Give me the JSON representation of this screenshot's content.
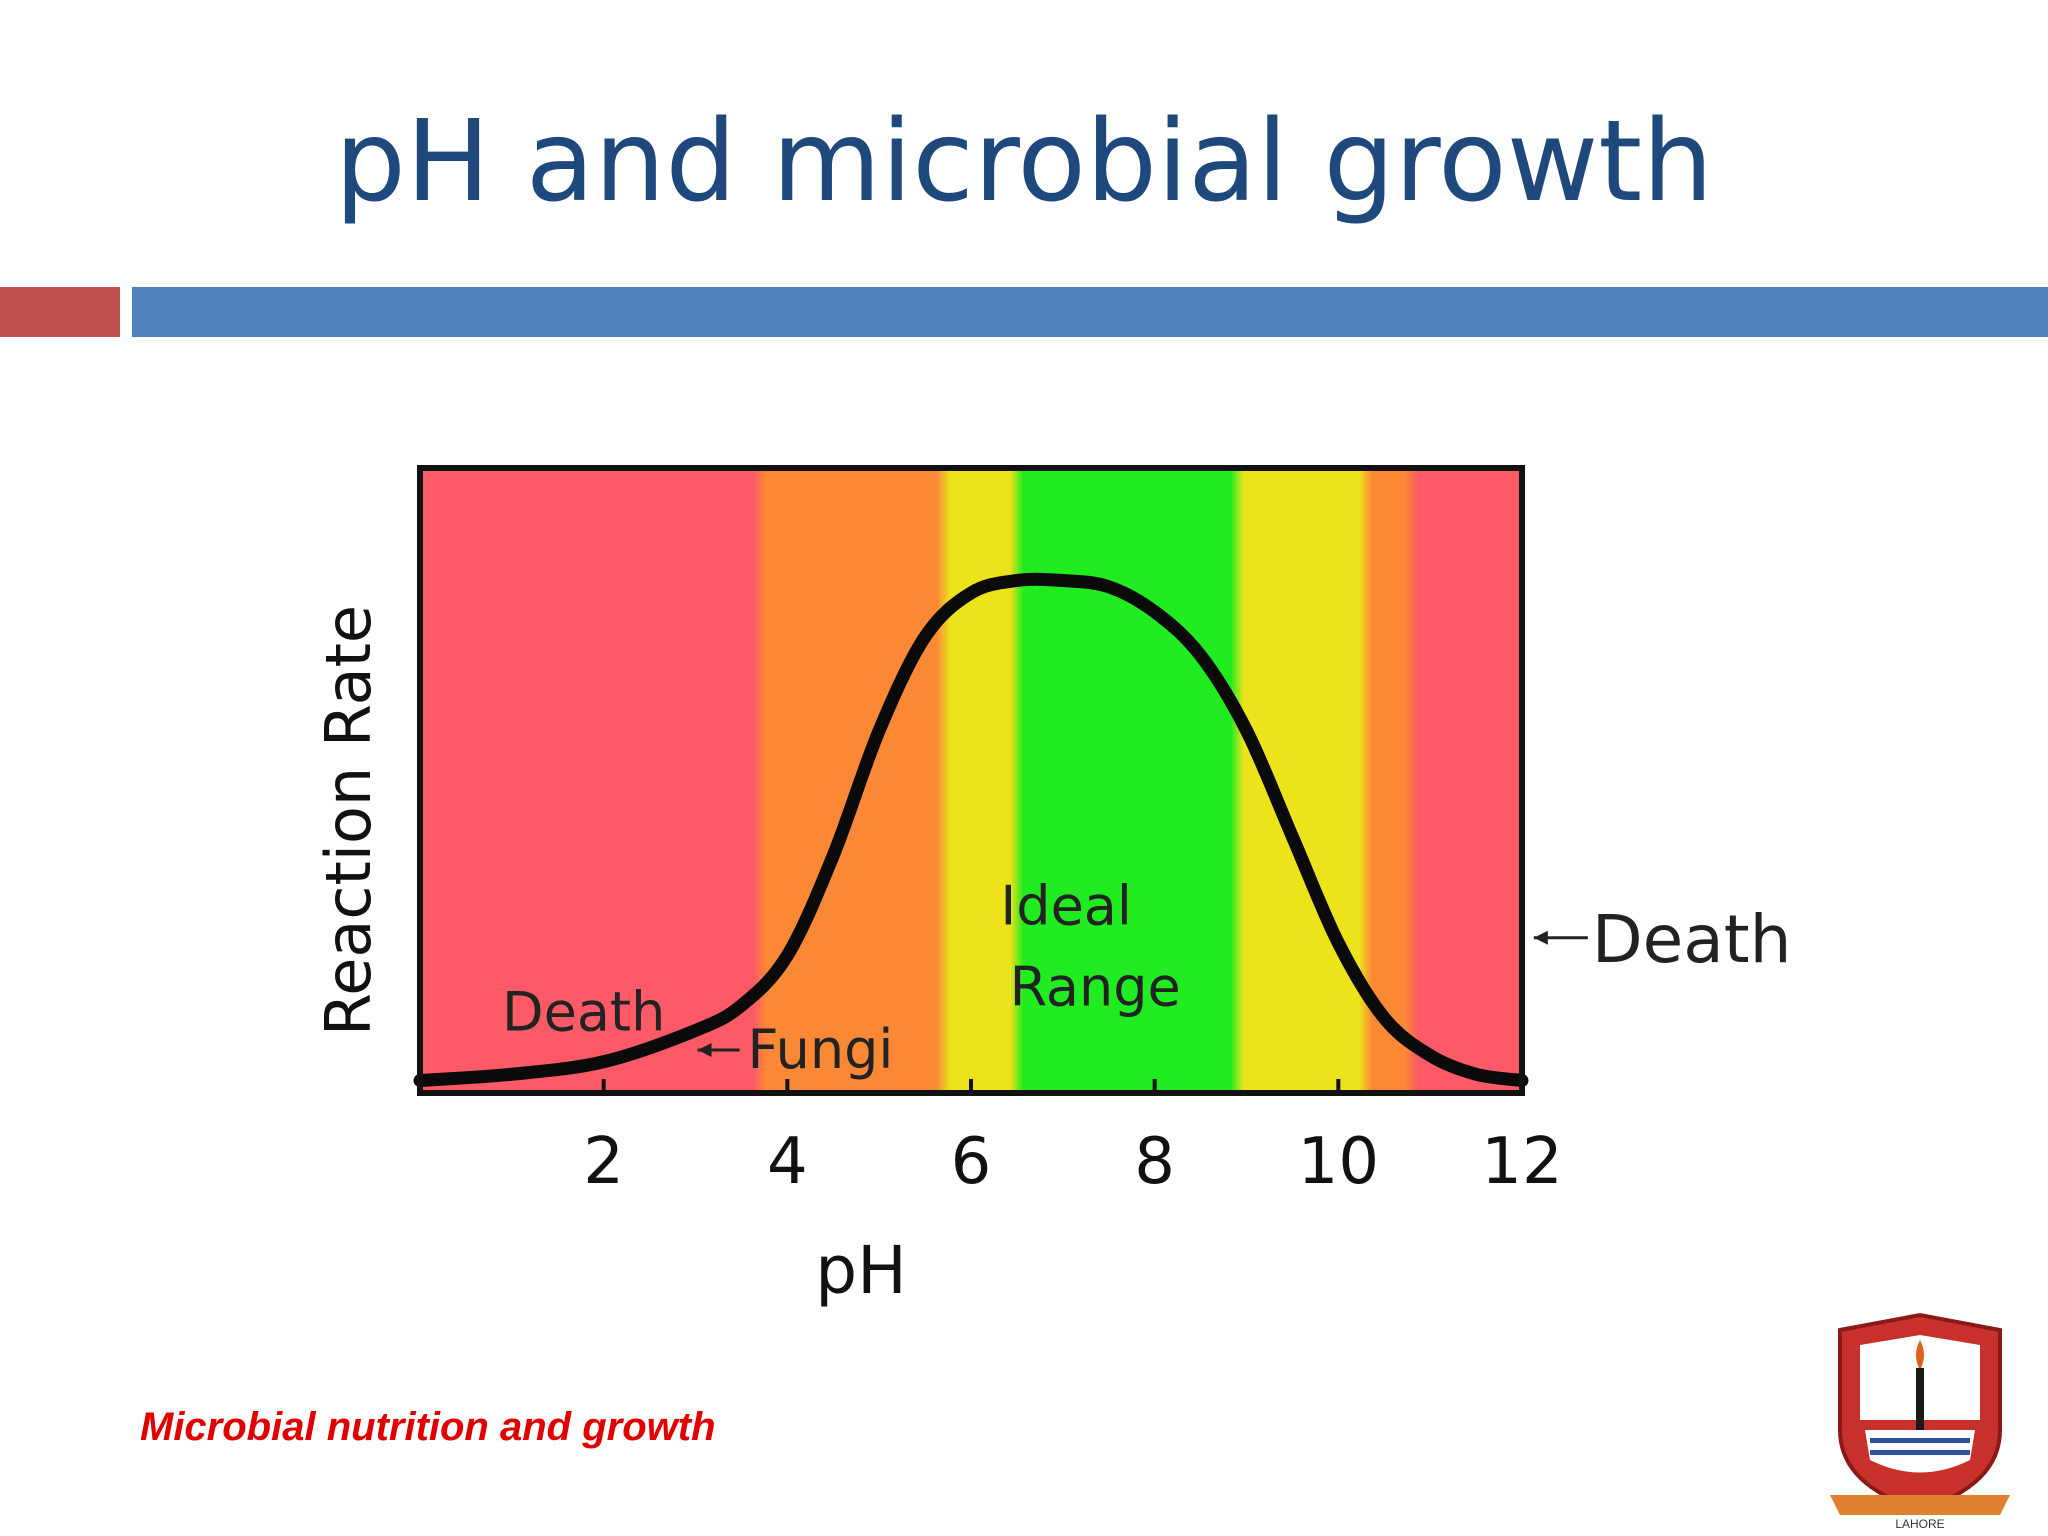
{
  "slide": {
    "title": "pH and microbial growth",
    "footer": "Microbial nutrition and growth",
    "accent_red": "#c0504d",
    "accent_blue": "#4f81bd",
    "title_color": "#1f497d",
    "footer_color": "#e00000"
  },
  "logo": {
    "icon": "college-crest-icon",
    "text": "LAHORE"
  },
  "chart_data": {
    "type": "line",
    "title": "",
    "xlabel": "pH",
    "ylabel": "Reaction Rate",
    "xlim": [
      0,
      12
    ],
    "ylim": [
      0,
      1
    ],
    "x_ticks": [
      2,
      4,
      6,
      8,
      10,
      12
    ],
    "grid": false,
    "series": [
      {
        "x": [
          0,
          1,
          2,
          3,
          3.5,
          4,
          4.5,
          5,
          5.5,
          6,
          6.5,
          7,
          7.5,
          8,
          8.5,
          9,
          9.5,
          10,
          10.5,
          11,
          11.5,
          12
        ],
        "y": [
          0.02,
          0.03,
          0.05,
          0.1,
          0.14,
          0.22,
          0.38,
          0.58,
          0.73,
          0.8,
          0.82,
          0.82,
          0.81,
          0.77,
          0.7,
          0.58,
          0.41,
          0.24,
          0.12,
          0.06,
          0.03,
          0.02
        ]
      }
    ],
    "zones": [
      {
        "from": 0,
        "to": 3.7,
        "color": "#fb5a66"
      },
      {
        "from": 3.7,
        "to": 5.7,
        "color": "#fb8835"
      },
      {
        "from": 5.7,
        "to": 6.5,
        "color": "#ece31a"
      },
      {
        "from": 6.5,
        "to": 8.9,
        "color": "#20ec21"
      },
      {
        "from": 8.9,
        "to": 10.3,
        "color": "#ece31a"
      },
      {
        "from": 10.3,
        "to": 10.8,
        "color": "#fb8835"
      },
      {
        "from": 10.8,
        "to": 12,
        "color": "#fb5a66"
      }
    ],
    "annotations": [
      {
        "text": "Death",
        "x": 2.2,
        "y": 0.1
      },
      {
        "text": "Fungi",
        "x": 5.2,
        "y": 0.04
      },
      {
        "text": "Ideal",
        "x": 7.3,
        "y": 0.27
      },
      {
        "text": "Range",
        "x": 7.4,
        "y": 0.14
      },
      {
        "text": "Death",
        "x": 13.0,
        "y": 0.21
      }
    ]
  }
}
